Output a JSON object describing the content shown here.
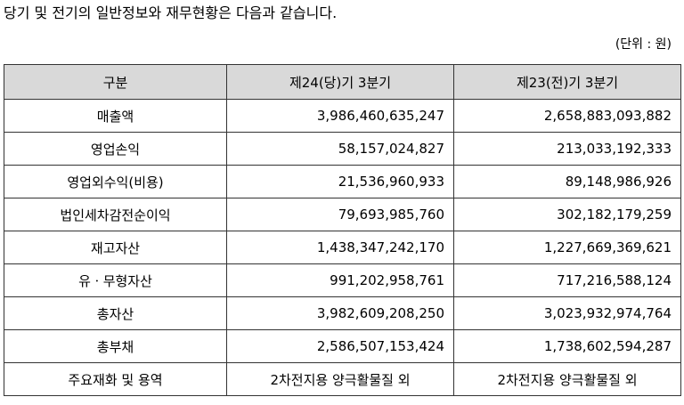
{
  "intro": "당기 및 전기의 일반정보와 재무현황은 다음과 같습니다.",
  "unit": "(단위 : 원)",
  "table": {
    "headers": [
      "구분",
      "제24(당)기 3분기",
      "제23(전)기 3분기"
    ],
    "rows": [
      [
        "매출액",
        "3,986,460,635,247",
        "2,658,883,093,882"
      ],
      [
        "영업손익",
        "58,157,024,827",
        "213,033,192,333"
      ],
      [
        "영업외수익(비용)",
        "21,536,960,933",
        "89,148,986,926"
      ],
      [
        "법인세차감전순이익",
        "79,693,985,760",
        "302,182,179,259"
      ],
      [
        "재고자산",
        "1,438,347,242,170",
        "1,227,669,369,621"
      ],
      [
        "유ㆍ무형자산",
        "991,202,958,761",
        "717,216,588,124"
      ],
      [
        "총자산",
        "3,982,609,208,250",
        "3,023,932,974,764"
      ],
      [
        "총부채",
        "2,586,507,153,424",
        "1,738,602,594,287"
      ],
      [
        "주요재화 및 용역",
        "2차전지용 양극활물질 외",
        "2차전지용 양극활물질 외"
      ]
    ]
  }
}
